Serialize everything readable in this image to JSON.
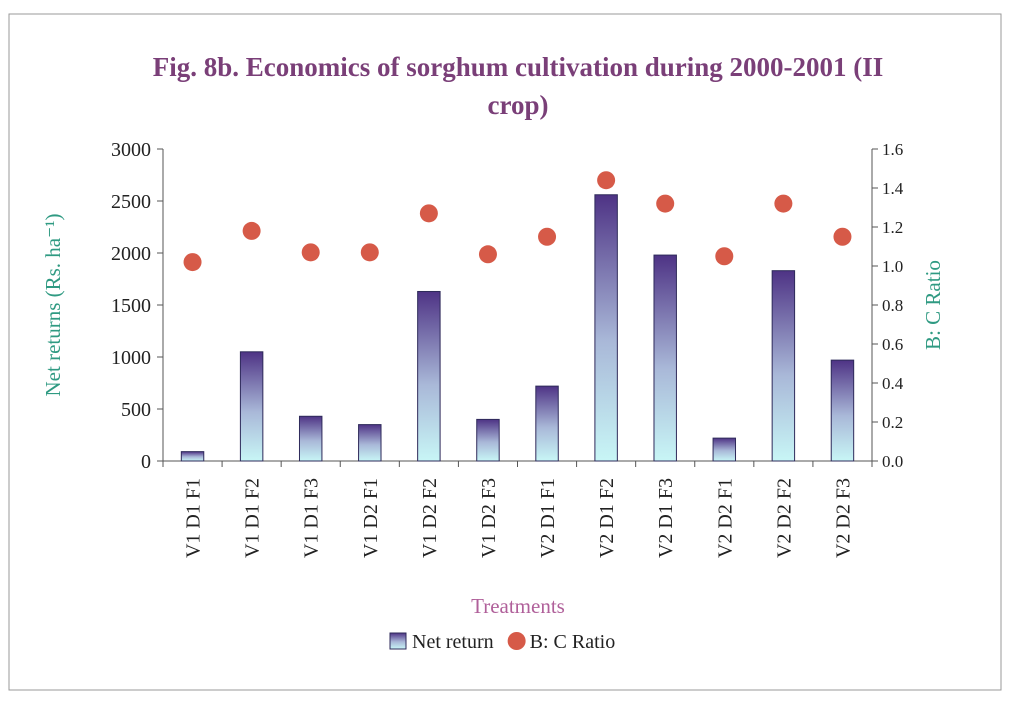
{
  "chart_data": {
    "type": "bar",
    "title": "Fig. 8b. Economics of sorghum cultivation during 2000-2001 (II crop)",
    "x_label": "Treatments",
    "y_label": "Net returns (Rs. ha⁻¹)",
    "y2_label": "B: C Ratio",
    "categories": [
      "V1 D1 F1",
      "V1 D1 F2",
      "V1 D1 F3",
      "V1 D2 F1",
      "V1 D2 F2",
      "V1 D2 F3",
      "V2 D1 F1",
      "V2 D1 F2",
      "V2 D1 F3",
      "V2 D2 F1",
      "V2 D2 F2",
      "V2 D2 F3"
    ],
    "series": [
      {
        "name": "Net return",
        "type": "bar",
        "color": "#5a3a8a",
        "values": [
          90,
          1050,
          430,
          350,
          1630,
          400,
          720,
          2560,
          1980,
          220,
          1830,
          970
        ]
      },
      {
        "name": "B: C Ratio",
        "type": "scatter",
        "axis": "y2",
        "color": "#d65a48",
        "values": [
          1.02,
          1.18,
          1.07,
          1.07,
          1.27,
          1.06,
          1.15,
          1.44,
          1.32,
          1.05,
          1.32,
          1.15
        ]
      }
    ],
    "ylim": [
      0,
      3000
    ],
    "yticks": [
      0,
      500,
      1000,
      1500,
      2000,
      2500,
      3000
    ],
    "y2lim": [
      0,
      1.6
    ],
    "y2ticks": [
      {
        "value": 0,
        "label": "0.0"
      },
      {
        "value": 0.2,
        "label": "0.2"
      },
      {
        "value": 0.4,
        "label": "0.4"
      },
      {
        "value": 0.6,
        "label": "0.6"
      },
      {
        "value": 0.8,
        "label": "0.8"
      },
      {
        "value": 1,
        "label": "1.0"
      },
      {
        "value": 1.2,
        "label": "1.2"
      },
      {
        "value": 1.4,
        "label": "1.4"
      },
      {
        "value": 1.6,
        "label": "1.6"
      }
    ],
    "legend": "bottom"
  }
}
